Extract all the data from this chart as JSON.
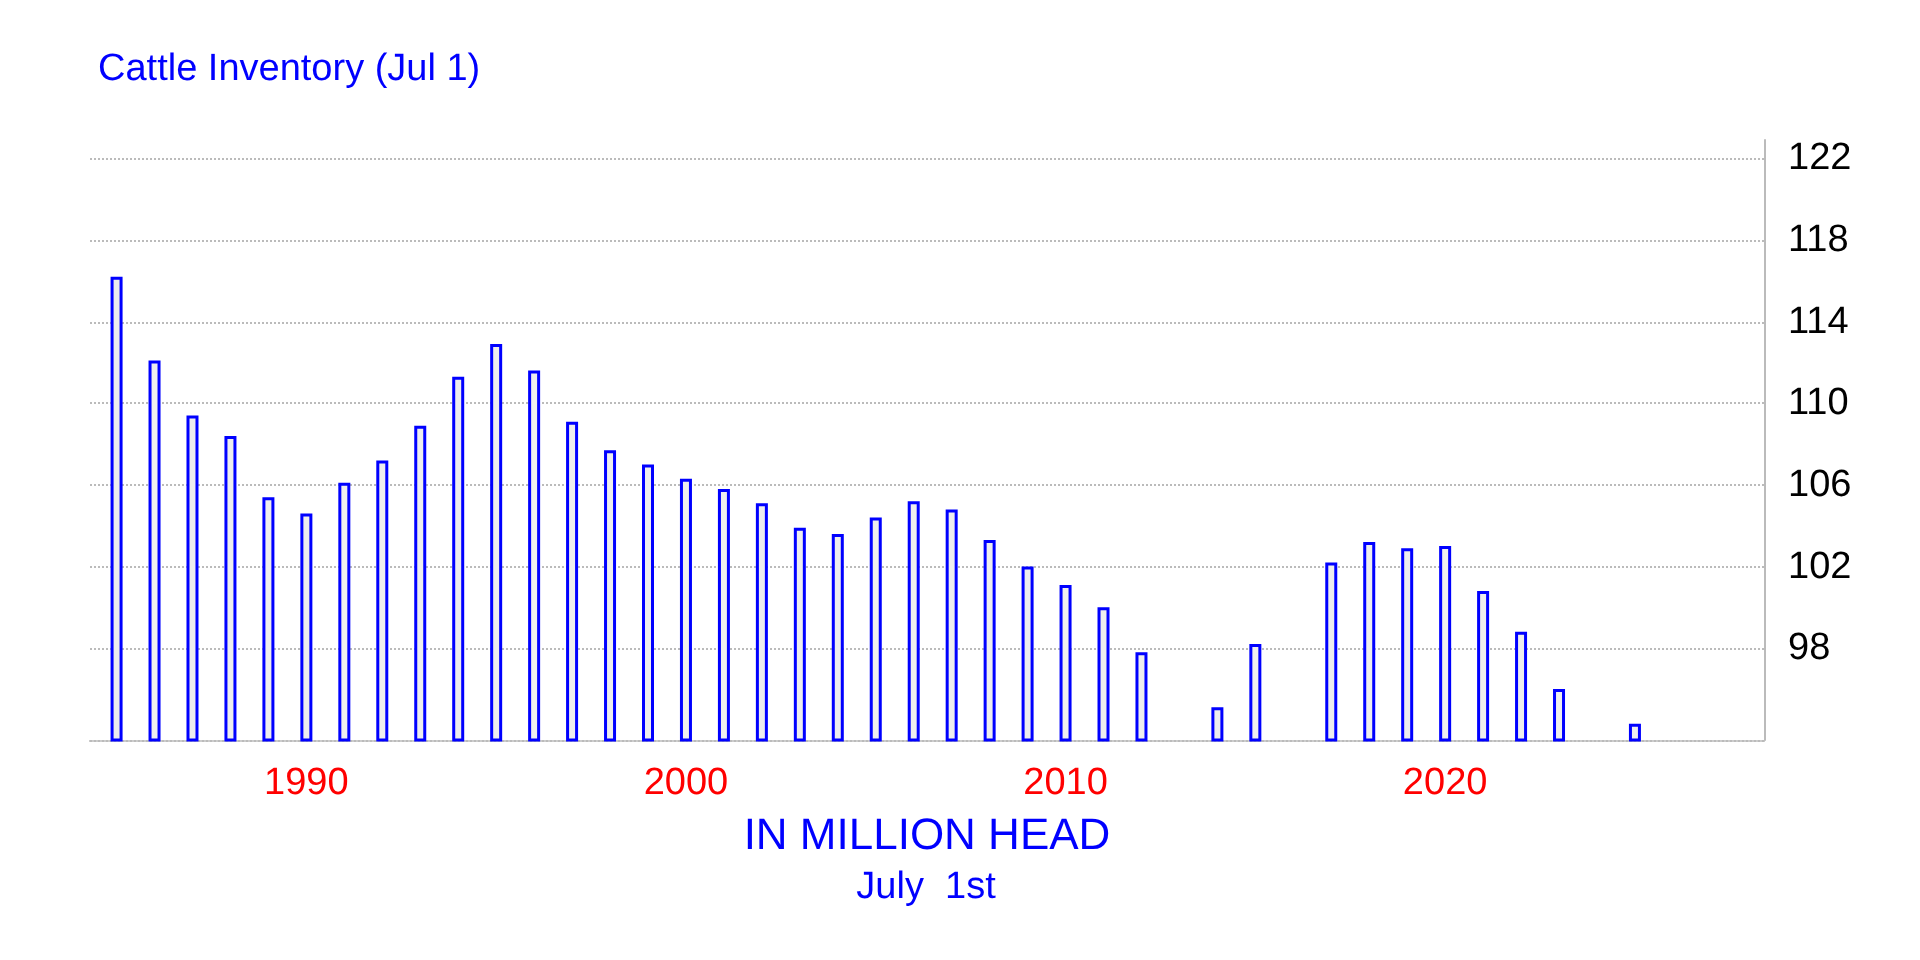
{
  "chart_data": {
    "type": "bar",
    "title": "Cattle Inventory (Jul 1)",
    "xlabel": "IN MILLION HEAD",
    "annotations": [
      "July  1st"
    ],
    "x": [
      1985,
      1986,
      1987,
      1988,
      1989,
      1990,
      1991,
      1992,
      1993,
      1994,
      1995,
      1996,
      1997,
      1998,
      1999,
      2000,
      2001,
      2002,
      2003,
      2004,
      2005,
      2006,
      2007,
      2008,
      2009,
      2010,
      2011,
      2012,
      2013,
      2014,
      2015,
      2016,
      2017,
      2018,
      2019,
      2020,
      2021,
      2022,
      2023,
      2024,
      2025
    ],
    "values": [
      116.2,
      112.1,
      109.4,
      108.4,
      105.4,
      104.6,
      106.1,
      107.2,
      108.9,
      111.3,
      112.9,
      111.6,
      109.1,
      107.7,
      107.0,
      106.3,
      105.8,
      105.1,
      103.9,
      103.6,
      104.4,
      105.2,
      104.8,
      103.3,
      102.0,
      101.1,
      100.0,
      97.8,
      null,
      95.1,
      98.2,
      null,
      102.2,
      103.2,
      102.9,
      103.0,
      100.8,
      98.8,
      96.0,
      null,
      94.3
    ],
    "color": "#0000ff",
    "xlim": [
      1984.3,
      2028.4
    ],
    "xticks": [
      1990,
      2000,
      2010,
      2020
    ],
    "ylim": [
      93.5,
      122.9
    ],
    "yticks": [
      98,
      102,
      106,
      110,
      114,
      118,
      122
    ],
    "grid": "y"
  }
}
